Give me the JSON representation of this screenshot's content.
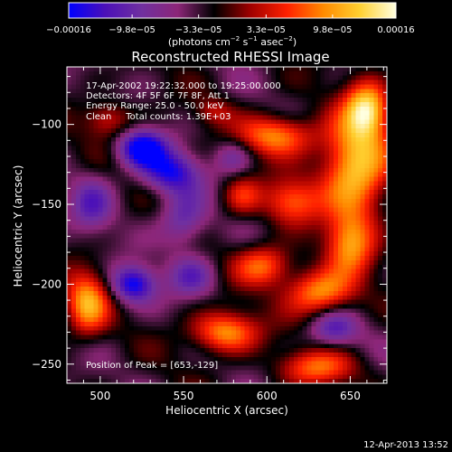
{
  "chart_data": {
    "type": "heatmap",
    "title": "Reconstructed RHESSI Image",
    "xlabel": "Heliocentric X (arcsec)",
    "ylabel": "Heliocentric Y (arcsec)",
    "xlim": [
      480,
      672
    ],
    "ylim": [
      -262,
      -64
    ],
    "x_ticks": [
      500,
      550,
      600,
      650
    ],
    "y_ticks": [
      -250,
      -200,
      -150,
      -100
    ],
    "colorbar": {
      "label": "(photons cm-2 s-1 asec-2)",
      "label_main": "(photons cm",
      "label_exp1": "−2",
      "label_mid1": " s",
      "label_exp2": "−1",
      "label_mid2": " asec",
      "label_exp3": "−2",
      "label_end": ")",
      "range": [
        -0.00016,
        0.00016
      ],
      "tick_labels": [
        "−0.00016",
        "−9.8e−05",
        "−3.3e−05",
        "3.3e−05",
        "9.8e−05",
        "0.00016"
      ],
      "tick_values": [
        -0.00016,
        -9.8e-05,
        -3.3e-05,
        3.3e-05,
        9.8e-05,
        0.00016
      ],
      "colors": [
        "#0000ff",
        "#4b10b8",
        "#7030a0",
        "#8c2678",
        "#000000",
        "#a00000",
        "#ff2000",
        "#ff8a00",
        "#ffd030",
        "#ffffe0"
      ]
    },
    "annotations": [
      "17-Apr-2002 19:22:32.000 to 19:25:00.000",
      "Detectors: 4F 5F 6F 7F 8F, Att 1",
      "Energy Range: 25.0 - 50.0 keV",
      "Clean     Total counts: 1.39E+03"
    ],
    "peak_label": "Position of Peak = [653,-129]",
    "peak": [
      653,
      -129
    ],
    "sources": [
      {
        "x": 653,
        "y": -127,
        "amp": 1.0,
        "sx": 14,
        "sy": 22
      },
      {
        "x": 660,
        "y": -90,
        "amp": 0.9,
        "sx": 9,
        "sy": 12
      },
      {
        "x": 606,
        "y": -107,
        "amp": 0.75,
        "sx": 16,
        "sy": 9
      },
      {
        "x": 615,
        "y": -148,
        "amp": 0.6,
        "sx": 12,
        "sy": 10
      },
      {
        "x": 650,
        "y": -175,
        "amp": 0.7,
        "sx": 10,
        "sy": 14
      },
      {
        "x": 632,
        "y": -205,
        "amp": 0.8,
        "sx": 14,
        "sy": 10
      },
      {
        "x": 598,
        "y": -188,
        "amp": 0.65,
        "sx": 12,
        "sy": 9
      },
      {
        "x": 575,
        "y": -230,
        "amp": 0.8,
        "sx": 14,
        "sy": 9
      },
      {
        "x": 630,
        "y": -252,
        "amp": 0.6,
        "sx": 16,
        "sy": 8
      },
      {
        "x": 492,
        "y": -212,
        "amp": 0.8,
        "sx": 9,
        "sy": 14
      },
      {
        "x": 505,
        "y": -97,
        "amp": 0.45,
        "sx": 10,
        "sy": 8
      },
      {
        "x": 585,
        "y": -145,
        "amp": 0.45,
        "sx": 8,
        "sy": 9
      },
      {
        "x": 568,
        "y": -92,
        "amp": 0.3,
        "sx": 8,
        "sy": 6
      },
      {
        "x": 640,
        "y": -228,
        "amp": -0.5,
        "sx": 10,
        "sy": 8
      },
      {
        "x": 525,
        "y": -115,
        "amp": -0.9,
        "sx": 10,
        "sy": 8
      },
      {
        "x": 542,
        "y": -130,
        "amp": -0.7,
        "sx": 12,
        "sy": 9
      },
      {
        "x": 550,
        "y": -160,
        "amp": -0.5,
        "sx": 10,
        "sy": 12
      },
      {
        "x": 520,
        "y": -200,
        "amp": -0.8,
        "sx": 9,
        "sy": 8
      },
      {
        "x": 555,
        "y": -195,
        "amp": -0.45,
        "sx": 10,
        "sy": 9
      },
      {
        "x": 495,
        "y": -150,
        "amp": -0.45,
        "sx": 9,
        "sy": 12
      },
      {
        "x": 580,
        "y": -120,
        "amp": -0.35,
        "sx": 8,
        "sy": 8
      }
    ]
  },
  "timestamp": "12-Apr-2013 13:52"
}
